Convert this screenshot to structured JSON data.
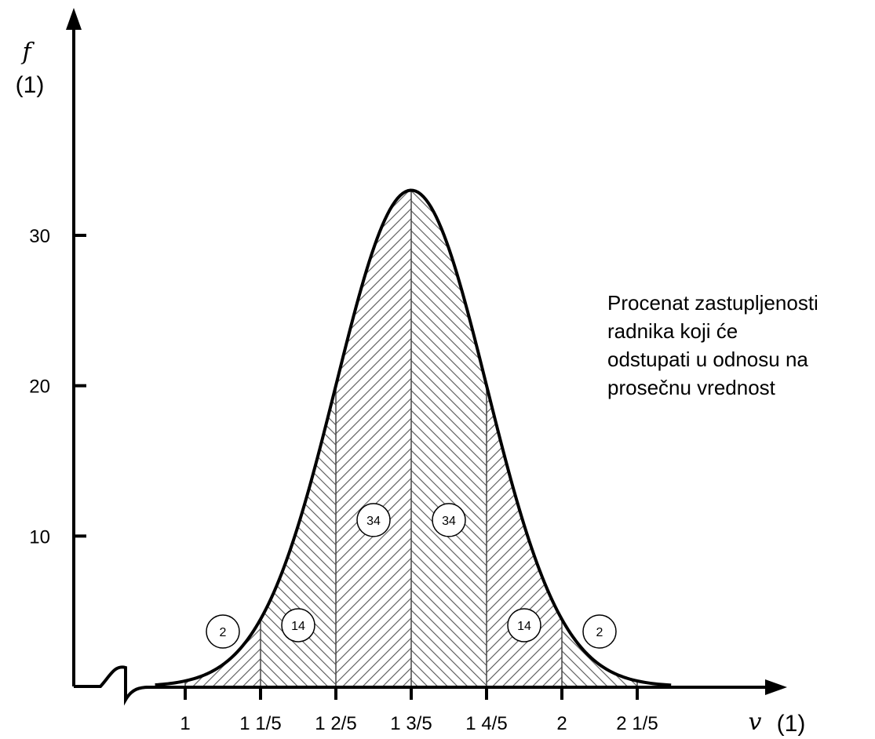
{
  "chart_data": {
    "type": "area",
    "x_tick_labels": [
      "1",
      "1 1/5",
      "1 2/5",
      "1 3/5",
      "1 4/5",
      "2",
      "2 1/5"
    ],
    "x_ticks": [
      1.0,
      1.2,
      1.4,
      1.6,
      1.8,
      2.0,
      2.2
    ],
    "y_tick_labels": [
      "10",
      "20",
      "30"
    ],
    "y_ticks": [
      10,
      20,
      30
    ],
    "xlim": [
      0.8,
      2.5
    ],
    "ylim": [
      0,
      40
    ],
    "xlabel_symbol": "v",
    "xlabel_unit": "(1)",
    "ylabel_symbol": "f",
    "ylabel_unit": "(1)",
    "curve": {
      "type": "normal",
      "mean": 1.6,
      "std_dev": 0.2,
      "peak": 33,
      "x_range": [
        0.92,
        2.29
      ]
    },
    "segments": [
      {
        "x_start": 1.0,
        "x_end": 1.2,
        "percent": "2",
        "hatch": "forward"
      },
      {
        "x_start": 1.2,
        "x_end": 1.4,
        "percent": "14",
        "hatch": "back"
      },
      {
        "x_start": 1.4,
        "x_end": 1.6,
        "percent": "34",
        "hatch": "forward"
      },
      {
        "x_start": 1.6,
        "x_end": 1.8,
        "percent": "34",
        "hatch": "back"
      },
      {
        "x_start": 1.8,
        "x_end": 2.0,
        "percent": "14",
        "hatch": "forward"
      },
      {
        "x_start": 2.0,
        "x_end": 2.2,
        "percent": "2",
        "hatch": "back"
      }
    ],
    "annotation": [
      "Procenat zastupljenosti",
      "radnika koji će",
      "odstupati u odnosu na",
      "prosečnu vrednost"
    ],
    "grid": false,
    "axis_break": true
  },
  "colors": {
    "line": "#000000",
    "hatch": "#555555",
    "background": "#ffffff"
  }
}
